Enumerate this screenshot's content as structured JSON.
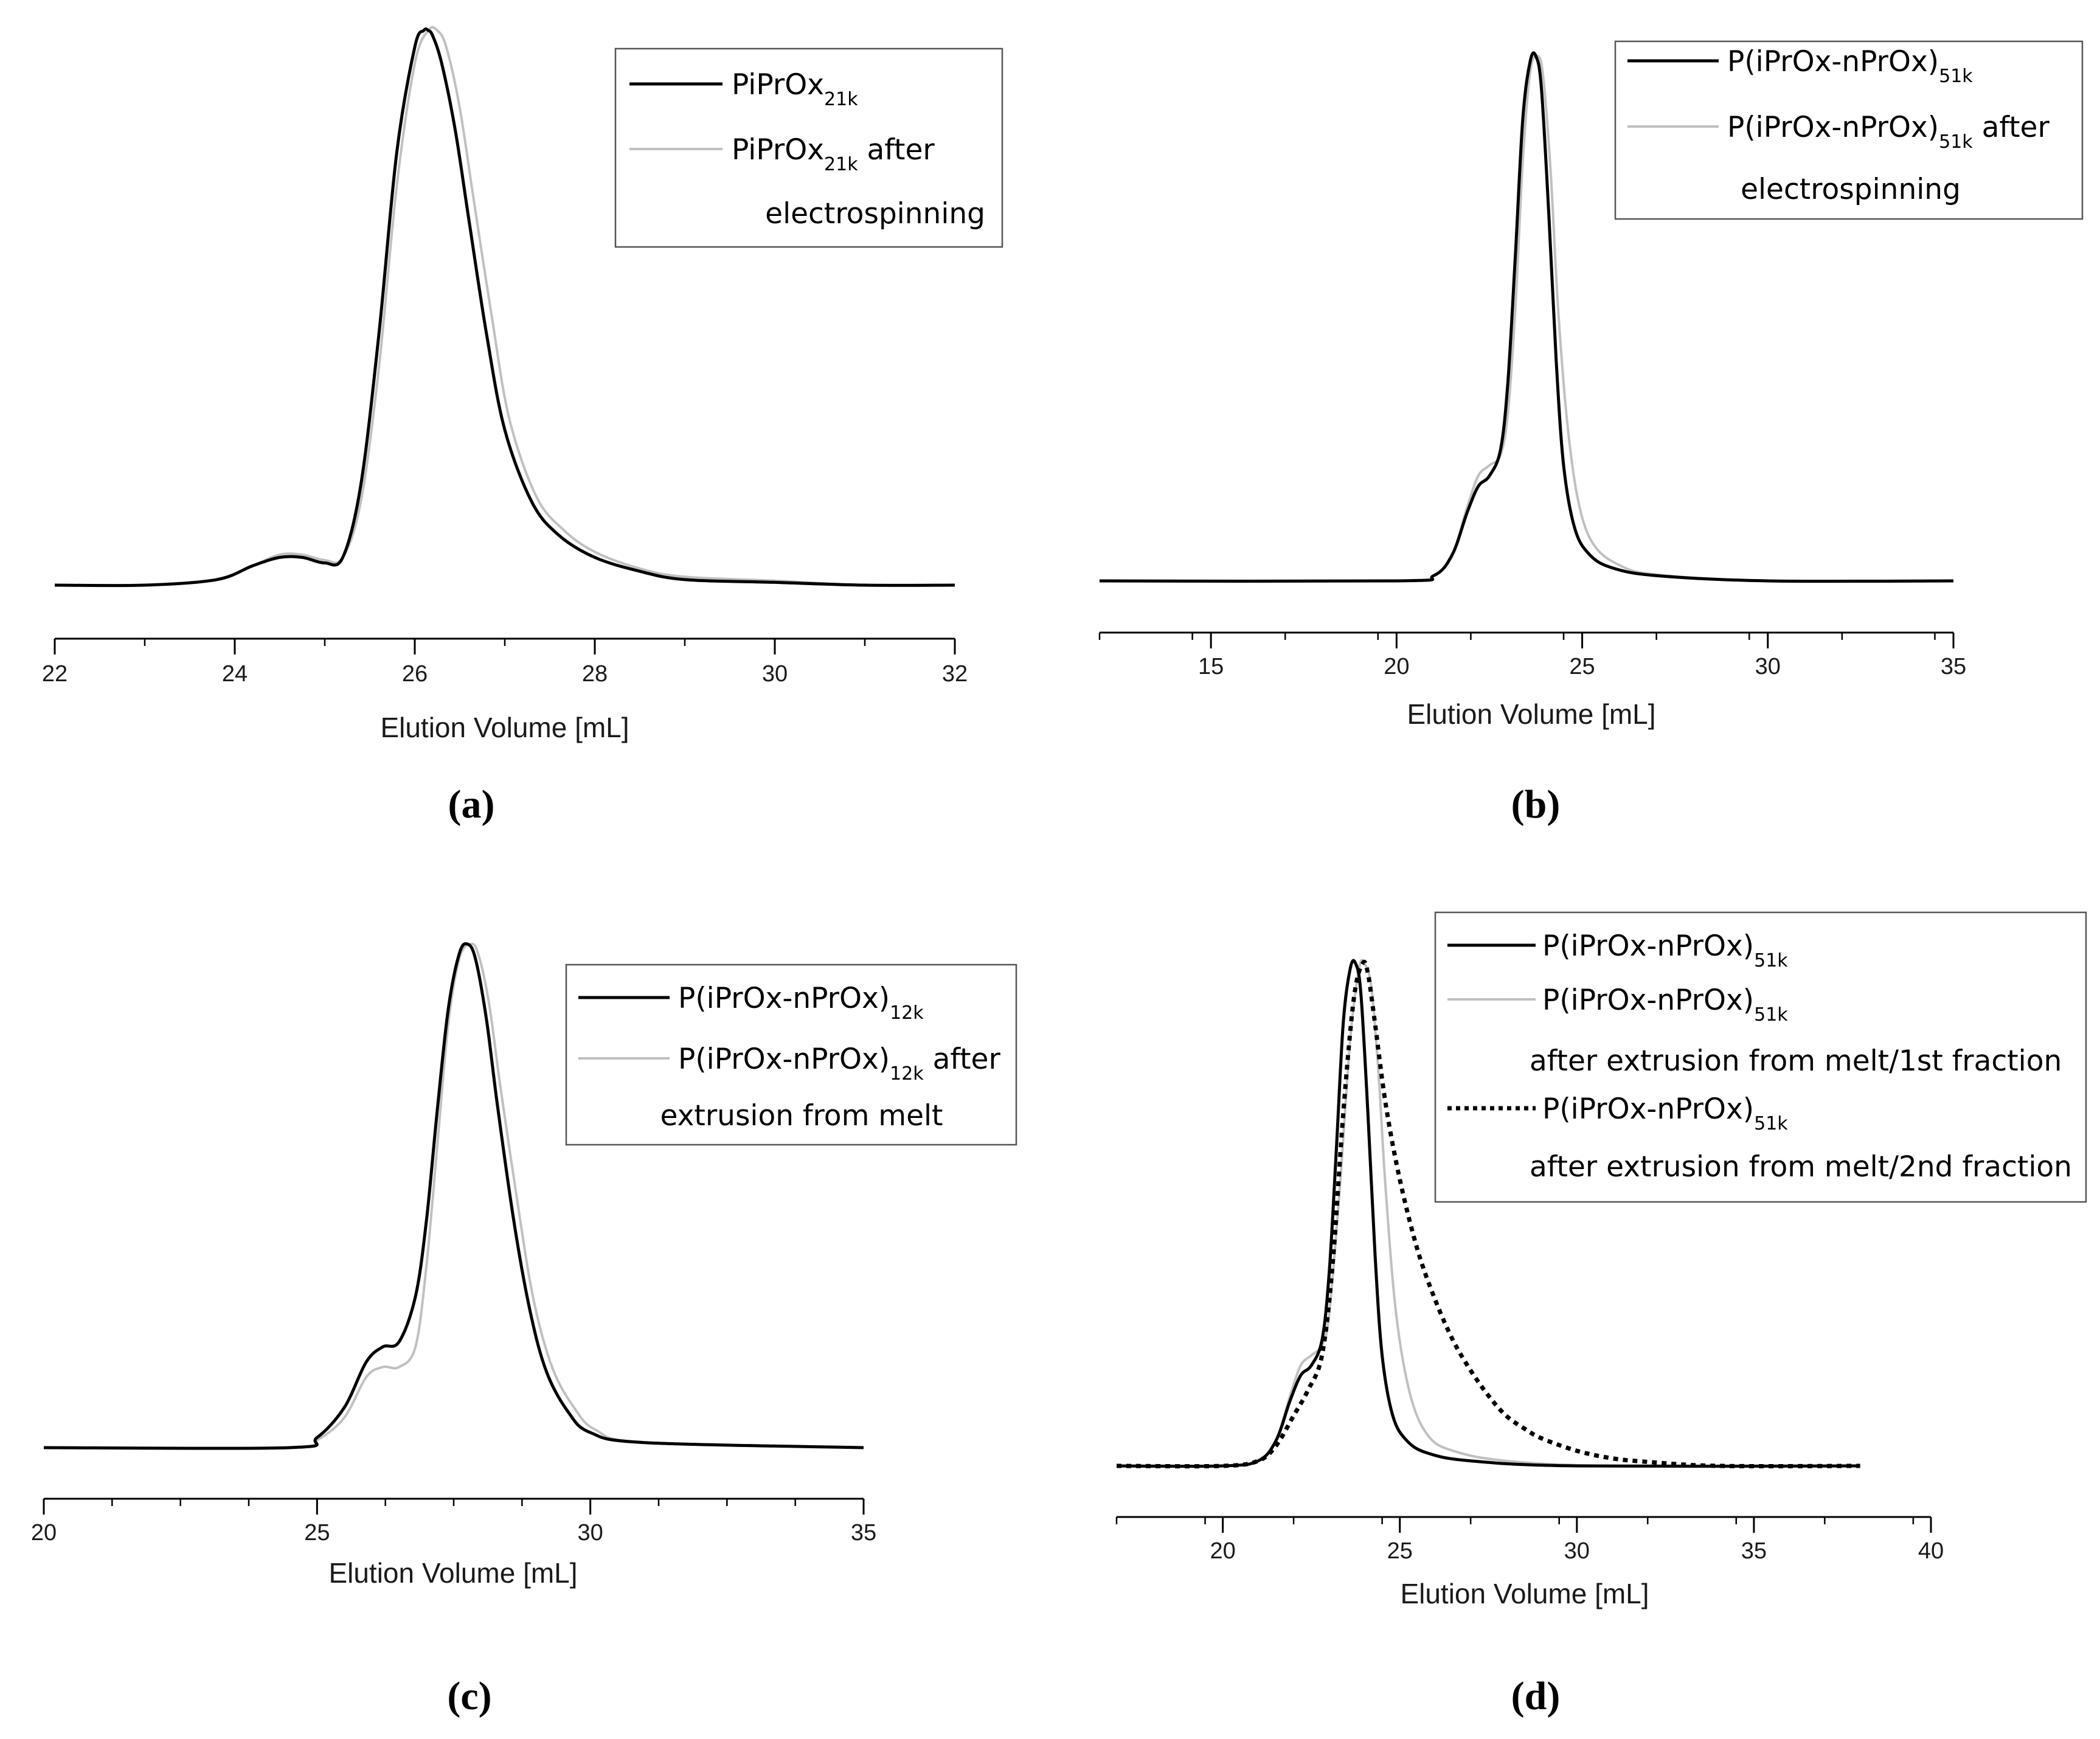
{
  "chart_data": [
    {
      "type": "line",
      "panel_label": "(a)",
      "xlabel": "Elution Volume [mL]",
      "xlim": [
        22,
        32
      ],
      "xticks": [
        22,
        24,
        26,
        28,
        30,
        32
      ],
      "minor_step": 1,
      "series": [
        {
          "name": "PiPrOx21k",
          "name_main": "PiPrOx",
          "name_sub": "21k",
          "name_after": "",
          "color": "#000000",
          "dash": "solid",
          "x": [
            22.0,
            23.0,
            23.8,
            24.2,
            24.5,
            24.75,
            25.0,
            25.2,
            25.4,
            25.6,
            25.8,
            26.0,
            26.1,
            26.15,
            26.2,
            26.3,
            26.45,
            26.6,
            26.8,
            27.0,
            27.3,
            27.6,
            28.0,
            28.5,
            29.0,
            30.0,
            31.0,
            32.0
          ],
          "y": [
            0.0,
            0.0,
            0.01,
            0.035,
            0.05,
            0.05,
            0.04,
            0.05,
            0.18,
            0.45,
            0.78,
            0.97,
            1.0,
            1.0,
            0.99,
            0.94,
            0.82,
            0.66,
            0.45,
            0.28,
            0.15,
            0.09,
            0.05,
            0.025,
            0.01,
            0.005,
            0.0,
            0.0
          ]
        },
        {
          "name": "PiPrOx21k after electrospinning",
          "name_main": "PiPrOx",
          "name_sub": "21k",
          "name_after": " after",
          "name_line2": "electrospinning",
          "color": "#c0c0c0",
          "dash": "solid",
          "x": [
            22.0,
            23.0,
            23.8,
            24.2,
            24.5,
            24.75,
            25.0,
            25.2,
            25.4,
            25.6,
            25.8,
            26.0,
            26.15,
            26.25,
            26.35,
            26.5,
            26.65,
            26.85,
            27.05,
            27.35,
            27.65,
            28.0,
            28.5,
            29.0,
            30.0,
            31.0,
            32.0
          ],
          "y": [
            0.0,
            0.0,
            0.01,
            0.035,
            0.055,
            0.055,
            0.045,
            0.05,
            0.15,
            0.39,
            0.72,
            0.94,
            1.0,
            1.0,
            0.97,
            0.86,
            0.7,
            0.49,
            0.3,
            0.16,
            0.1,
            0.06,
            0.03,
            0.015,
            0.008,
            0.0,
            0.0
          ]
        }
      ]
    },
    {
      "type": "line",
      "panel_label": "(b)",
      "xlabel": "Elution Volume [mL]",
      "xlim": [
        12,
        35
      ],
      "xticks": [
        15,
        20,
        25,
        30,
        35
      ],
      "minor_step": 2.5,
      "series": [
        {
          "name": "P(iPrOx-nPrOx)51k",
          "name_main": "P(iPrOx-nPrOx)",
          "name_sub": "51k",
          "name_after": "",
          "color": "#000000",
          "dash": "solid",
          "x": [
            12.0,
            20.0,
            21.0,
            21.5,
            21.9,
            22.2,
            22.5,
            22.8,
            23.0,
            23.2,
            23.4,
            23.6,
            23.75,
            23.9,
            24.1,
            24.3,
            24.5,
            24.8,
            25.2,
            25.8,
            27.0,
            30.0,
            35.0
          ],
          "y": [
            0.0,
            0.0,
            0.01,
            0.05,
            0.13,
            0.18,
            0.2,
            0.25,
            0.38,
            0.62,
            0.88,
            0.99,
            1.0,
            0.94,
            0.7,
            0.42,
            0.22,
            0.1,
            0.05,
            0.025,
            0.01,
            0.0,
            0.0
          ]
        },
        {
          "name": "P(iPrOx-nPrOx)51k after electrospinning",
          "name_main": "P(iPrOx-nPrOx)",
          "name_sub": "51k",
          "name_after": " after",
          "name_line2": "electrospinning",
          "color": "#c0c0c0",
          "dash": "solid",
          "x": [
            12.0,
            20.0,
            21.0,
            21.5,
            21.9,
            22.2,
            22.5,
            22.8,
            23.0,
            23.2,
            23.4,
            23.6,
            23.8,
            23.95,
            24.15,
            24.35,
            24.6,
            24.9,
            25.3,
            26.0,
            27.0,
            30.0,
            35.0
          ],
          "y": [
            0.0,
            0.0,
            0.01,
            0.05,
            0.14,
            0.2,
            0.22,
            0.24,
            0.32,
            0.52,
            0.8,
            0.97,
            1.0,
            0.96,
            0.78,
            0.52,
            0.3,
            0.15,
            0.07,
            0.03,
            0.012,
            0.0,
            0.0
          ]
        }
      ]
    },
    {
      "type": "line",
      "panel_label": "(c)",
      "xlabel": "Elution Volume [mL]",
      "xlim": [
        20,
        35
      ],
      "xticks": [
        20,
        25,
        30,
        35
      ],
      "minor_step": 1.25,
      "series": [
        {
          "name": "P(iPrOx-nPrOx)12k",
          "name_main": "P(iPrOx-nPrOx)",
          "name_sub": "12k",
          "name_after": "",
          "color": "#000000",
          "dash": "solid",
          "x": [
            20.0,
            24.5,
            25.0,
            25.5,
            25.9,
            26.2,
            26.5,
            26.8,
            27.0,
            27.2,
            27.4,
            27.6,
            27.75,
            27.9,
            28.1,
            28.3,
            28.6,
            28.9,
            29.2,
            29.6,
            30.0,
            31.0,
            35.0
          ],
          "y": [
            0.0,
            0.0,
            0.02,
            0.08,
            0.17,
            0.2,
            0.21,
            0.3,
            0.45,
            0.67,
            0.87,
            0.98,
            1.0,
            0.97,
            0.85,
            0.68,
            0.45,
            0.27,
            0.15,
            0.07,
            0.03,
            0.01,
            0.0
          ]
        },
        {
          "name": "P(iPrOx-nPrOx)12k after extrusion from melt",
          "name_main": "P(iPrOx-nPrOx)",
          "name_sub": "12k",
          "name_after": " after",
          "name_line2": "extrusion from melt",
          "color": "#c0c0c0",
          "dash": "solid",
          "x": [
            20.0,
            24.5,
            25.0,
            25.5,
            25.9,
            26.2,
            26.5,
            26.8,
            27.0,
            27.2,
            27.4,
            27.6,
            27.8,
            27.95,
            28.15,
            28.35,
            28.65,
            28.95,
            29.3,
            29.7,
            30.1,
            31.0,
            35.0
          ],
          "y": [
            0.0,
            0.0,
            0.015,
            0.06,
            0.14,
            0.16,
            0.16,
            0.2,
            0.36,
            0.6,
            0.84,
            0.97,
            1.0,
            0.98,
            0.88,
            0.72,
            0.5,
            0.3,
            0.16,
            0.08,
            0.035,
            0.01,
            0.0
          ]
        }
      ]
    },
    {
      "type": "line",
      "panel_label": "(d)",
      "xlabel": "Elution Volume [mL]",
      "xlim": [
        17,
        40
      ],
      "xticks": [
        20,
        25,
        30,
        35,
        40
      ],
      "minor_step": 2.5,
      "series": [
        {
          "name": "P(iPrOx-nPrOx)51k",
          "name_main": "P(iPrOx-nPrOx)",
          "name_sub": "51k",
          "name_after": "",
          "color": "#000000",
          "dash": "solid",
          "x": [
            17.0,
            20.0,
            21.0,
            21.5,
            21.9,
            22.2,
            22.5,
            22.8,
            23.0,
            23.2,
            23.4,
            23.6,
            23.75,
            23.9,
            24.1,
            24.3,
            24.5,
            24.8,
            25.2,
            25.8,
            27.0,
            30.0,
            38.0
          ],
          "y": [
            0.0,
            0.0,
            0.01,
            0.05,
            0.13,
            0.18,
            0.2,
            0.25,
            0.38,
            0.62,
            0.88,
            0.99,
            1.0,
            0.94,
            0.7,
            0.42,
            0.22,
            0.1,
            0.05,
            0.025,
            0.01,
            0.0,
            0.0
          ]
        },
        {
          "name": "P(iPrOx-nPrOx)51k after extrusion from melt/1st fraction",
          "name_main": "P(iPrOx-nPrOx)",
          "name_sub": "51k",
          "name_after": "",
          "name_line2": "after extrusion from melt/1st fraction",
          "color": "#c0c0c0",
          "dash": "solid",
          "x": [
            17.0,
            20.0,
            21.0,
            21.5,
            21.9,
            22.2,
            22.5,
            22.8,
            23.0,
            23.3,
            23.6,
            23.85,
            24.0,
            24.2,
            24.4,
            24.6,
            24.9,
            25.3,
            25.8,
            26.5,
            28.0,
            31.0,
            38.0
          ],
          "y": [
            0.0,
            0.0,
            0.01,
            0.05,
            0.14,
            0.2,
            0.22,
            0.24,
            0.3,
            0.55,
            0.85,
            0.99,
            1.0,
            0.95,
            0.78,
            0.55,
            0.3,
            0.14,
            0.06,
            0.03,
            0.01,
            0.0,
            0.0
          ]
        },
        {
          "name": "P(iPrOx-nPrOx)51k after extrusion from melt/2nd fraction",
          "name_main": "P(iPrOx-nPrOx)",
          "name_sub": "51k",
          "name_after": "",
          "name_line2": "after extrusion from melt/2nd fraction",
          "color": "#000000",
          "dash": "dotted",
          "x": [
            17.0,
            20.0,
            21.0,
            21.5,
            22.0,
            22.4,
            22.8,
            23.1,
            23.4,
            23.7,
            23.95,
            24.1,
            24.3,
            24.6,
            25.0,
            25.5,
            26.0,
            26.5,
            27.0,
            27.5,
            28.0,
            28.5,
            29.0,
            30.0,
            31.0,
            32.0,
            34.0,
            38.0
          ],
          "y": [
            0.0,
            0.0,
            0.01,
            0.04,
            0.1,
            0.15,
            0.22,
            0.4,
            0.7,
            0.93,
            1.0,
            0.98,
            0.88,
            0.72,
            0.57,
            0.43,
            0.33,
            0.25,
            0.19,
            0.14,
            0.1,
            0.075,
            0.055,
            0.03,
            0.015,
            0.008,
            0.0,
            0.0
          ]
        }
      ]
    }
  ]
}
